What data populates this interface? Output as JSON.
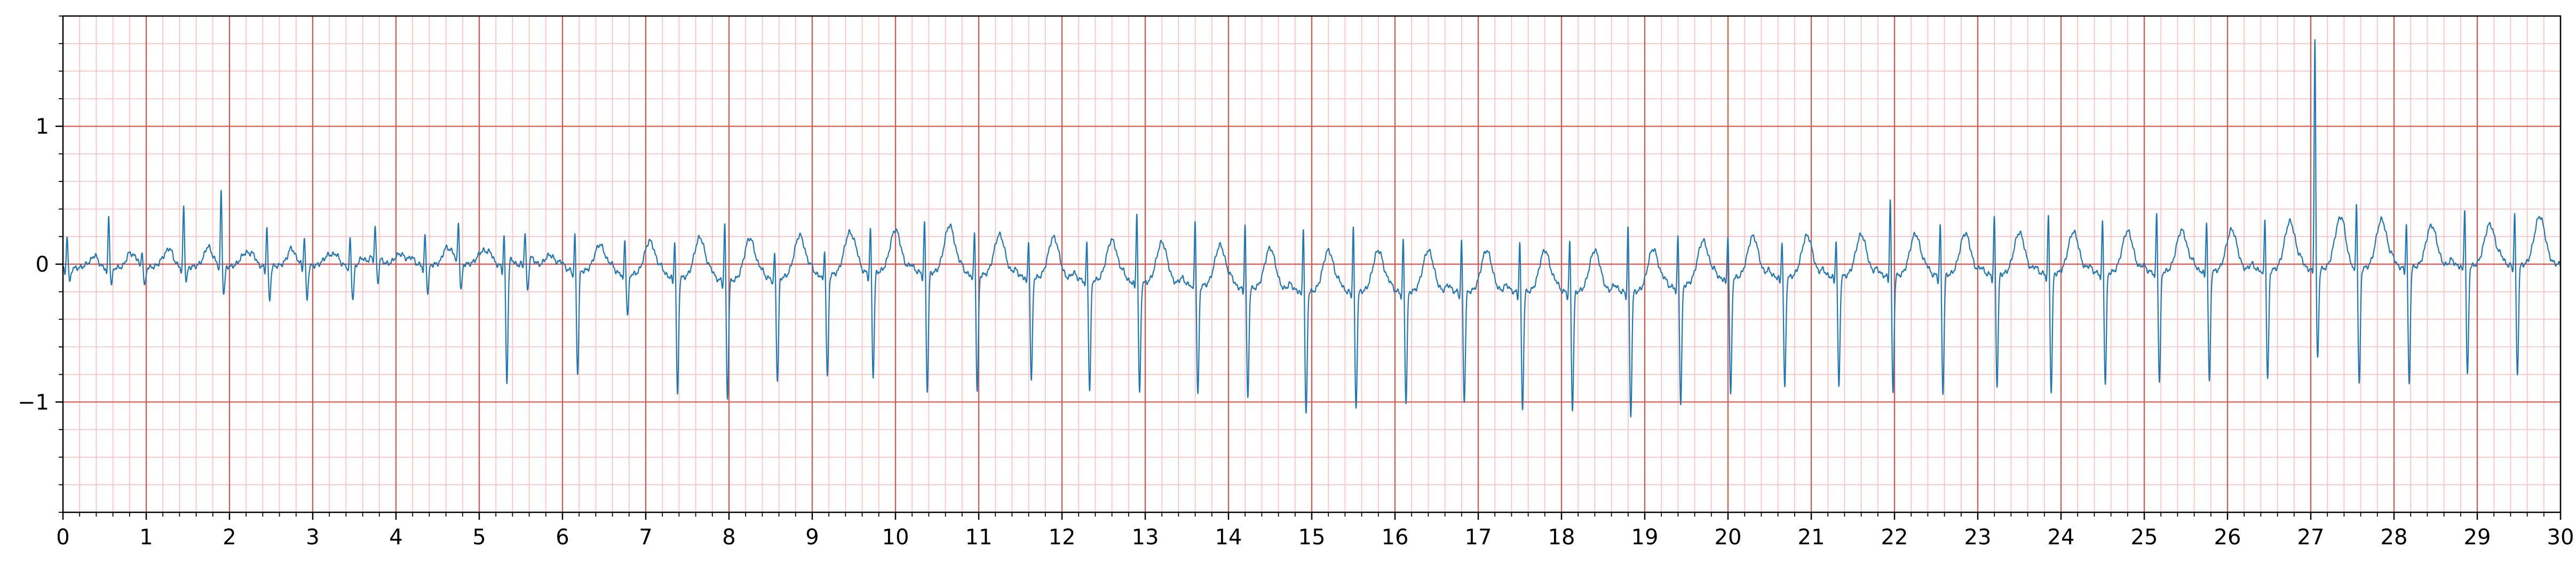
{
  "chart_data": {
    "type": "line",
    "title": "",
    "xlabel": "",
    "ylabel": "",
    "xlim": [
      0,
      30
    ],
    "ylim": [
      -1.8,
      1.8
    ],
    "x_ticks": [
      "0",
      "1",
      "2",
      "3",
      "4",
      "5",
      "6",
      "7",
      "8",
      "9",
      "10",
      "11",
      "12",
      "13",
      "14",
      "15",
      "16",
      "17",
      "18",
      "19",
      "20",
      "21",
      "22",
      "23",
      "24",
      "25",
      "26",
      "27",
      "28",
      "29",
      "30"
    ],
    "y_ticks": [
      {
        "value": 1,
        "label": "1"
      },
      {
        "value": 0,
        "label": "0"
      },
      {
        "value": -1,
        "label": "−1"
      }
    ],
    "grid": {
      "major": true,
      "major_step_x": 1,
      "major_step_y": 1,
      "minor": true,
      "minor_step_x": 0.2,
      "minor_step_y": 0.2,
      "major_color": "#e8524a",
      "minor_color": "#ffbdbd"
    },
    "series": [
      {
        "color": "#1f77b4",
        "line_width": 1,
        "beat_times": [
          0.05,
          0.55,
          0.95,
          1.45,
          1.9,
          2.45,
          2.9,
          3.45,
          3.75,
          4.35,
          4.75,
          5.3,
          5.55,
          6.15,
          6.75,
          7.35,
          7.95,
          8.55,
          9.15,
          9.7,
          10.35,
          10.95,
          11.6,
          12.3,
          12.9,
          13.6,
          14.2,
          14.9,
          15.5,
          16.1,
          16.8,
          17.5,
          18.1,
          18.8,
          19.4,
          20.0,
          20.65,
          21.3,
          21.95,
          22.55,
          23.2,
          23.85,
          24.5,
          25.15,
          25.75,
          26.45,
          27.05,
          27.55,
          28.15,
          28.85,
          29.45
        ],
        "r_peak_amplitudes": [
          0.25,
          0.38,
          0.1,
          0.45,
          0.55,
          0.3,
          0.22,
          0.2,
          0.2,
          0.22,
          0.28,
          0.25,
          0.2,
          0.28,
          0.25,
          0.3,
          0.45,
          0.2,
          0.2,
          0.35,
          0.4,
          0.35,
          0.3,
          0.3,
          0.55,
          0.5,
          0.5,
          0.5,
          0.5,
          0.4,
          0.4,
          0.4,
          0.4,
          0.5,
          0.4,
          0.35,
          0.3,
          0.3,
          0.6,
          0.4,
          0.45,
          0.45,
          0.4,
          0.45,
          0.4,
          0.4,
          1.7,
          0.5,
          0.35,
          0.45,
          0.4
        ],
        "s_wave_depths": [
          -0.1,
          -0.12,
          -0.15,
          -0.1,
          -0.2,
          -0.25,
          -0.25,
          -0.25,
          -0.2,
          -0.2,
          -0.2,
          -0.85,
          -0.25,
          -0.75,
          -0.3,
          -0.85,
          -0.85,
          -0.75,
          -0.75,
          -0.75,
          -0.85,
          -0.85,
          -0.75,
          -0.8,
          -0.8,
          -0.8,
          -0.8,
          -0.9,
          -0.85,
          -0.8,
          -0.8,
          -0.85,
          -0.85,
          -0.9,
          -0.85,
          -0.85,
          -0.8,
          -0.8,
          -0.85,
          -0.85,
          -0.8,
          -0.85,
          -0.8,
          -0.8,
          -0.8,
          -0.8,
          -0.65,
          -0.85,
          -0.85,
          -0.8,
          -0.8
        ],
        "t_wave_amplitudes": [
          0.05,
          0.08,
          0.1,
          0.1,
          0.1,
          0.08,
          0.08,
          0.08,
          0.08,
          0.1,
          0.1,
          0.08,
          0.1,
          0.2,
          0.25,
          0.3,
          0.3,
          0.3,
          0.3,
          0.3,
          0.35,
          0.3,
          0.3,
          0.3,
          0.3,
          0.3,
          0.3,
          0.3,
          0.3,
          0.3,
          0.3,
          0.3,
          0.3,
          0.3,
          0.3,
          0.3,
          0.3,
          0.3,
          0.3,
          0.3,
          0.3,
          0.3,
          0.3,
          0.3,
          0.3,
          0.35,
          0.35,
          0.35,
          0.3,
          0.3,
          0.35
        ],
        "baseline_wander": [
          [
            0,
            -0.03
          ],
          [
            5,
            0.0
          ],
          [
            8,
            -0.12
          ],
          [
            10,
            -0.05
          ],
          [
            13.5,
            -0.15
          ],
          [
            15,
            -0.2
          ],
          [
            19,
            -0.2
          ],
          [
            20,
            -0.1
          ],
          [
            26,
            -0.05
          ],
          [
            30,
            0.0
          ]
        ]
      }
    ]
  }
}
